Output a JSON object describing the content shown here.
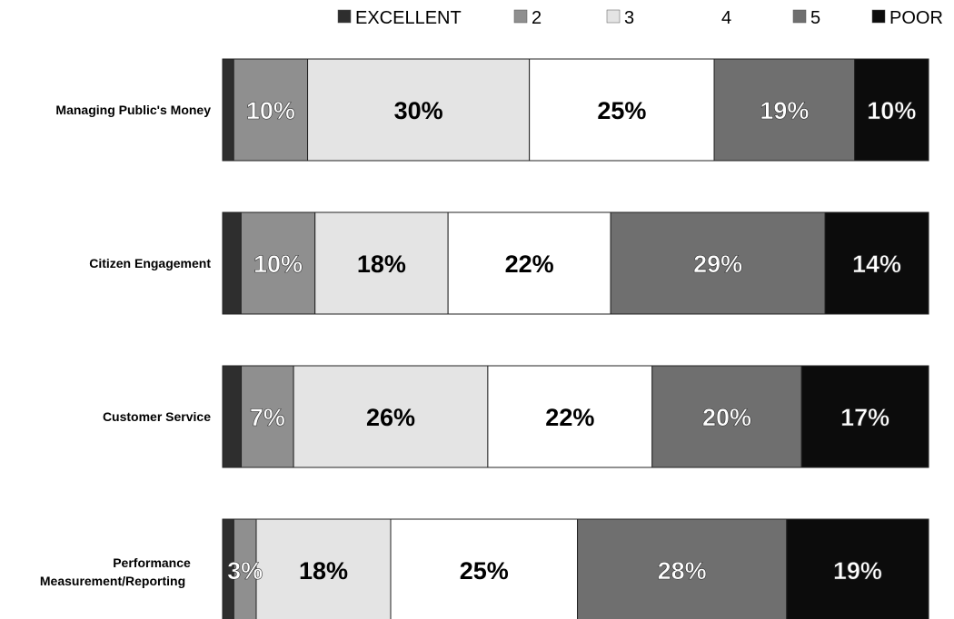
{
  "chart_data": {
    "type": "bar",
    "orientation": "horizontal",
    "stacked": true,
    "percent_of_total": true,
    "categories": [
      "Managing Public's Money",
      "Citizen Engagement",
      "Customer Service",
      "Performance Measurement/Reporting"
    ],
    "series": [
      {
        "name": "EXCELLENT",
        "color": "#2e2e2e",
        "values": [
          1.5,
          2.5,
          2.5,
          1.5
        ],
        "labels": [
          "",
          "",
          "",
          ""
        ]
      },
      {
        "name": "2",
        "color": "#8f8f8f",
        "values": [
          10,
          10,
          7,
          3
        ],
        "labels": [
          "10%",
          "10%",
          "7%",
          "3%"
        ]
      },
      {
        "name": "3",
        "color": "#e4e4e4",
        "values": [
          30,
          18,
          26,
          18
        ],
        "labels": [
          "30%",
          "18%",
          "26%",
          "18%"
        ]
      },
      {
        "name": "4",
        "color": "#ffffff",
        "values": [
          25,
          22,
          22,
          25
        ],
        "labels": [
          "25%",
          "22%",
          "22%",
          "25%"
        ]
      },
      {
        "name": "5",
        "color": "#6f6f6f",
        "values": [
          19,
          29,
          20,
          28
        ],
        "labels": [
          "19%",
          "29%",
          "20%",
          "28%"
        ]
      },
      {
        "name": "POOR",
        "color": "#0c0c0c",
        "values": [
          10,
          14,
          17,
          19
        ],
        "labels": [
          "10%",
          "14%",
          "17%",
          "19%"
        ]
      }
    ],
    "legend": {
      "position": "top-right"
    },
    "grid": false,
    "title": "",
    "xlabel": "",
    "ylabel": ""
  }
}
